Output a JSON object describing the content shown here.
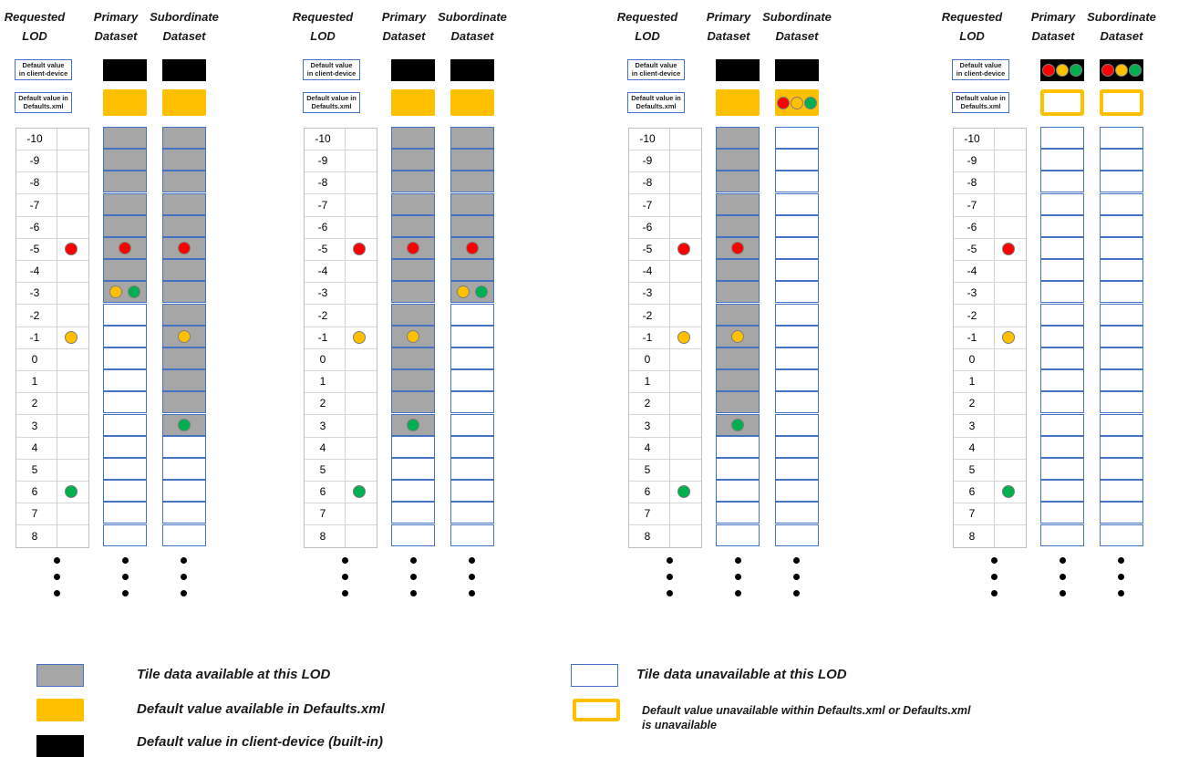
{
  "headers": {
    "requested": "Requested\nLOD",
    "primary": "Primary\nDataset",
    "subordinate": "Subordinate\nDataset"
  },
  "default_labels": {
    "client": "Default value\nin client-device",
    "xml": "Default value in\nDefaults.xml"
  },
  "lod_levels": [
    "-10",
    "-9",
    "-8",
    "-7",
    "-6",
    "-5",
    "-4",
    "-3",
    "-2",
    "-1",
    "0",
    "1",
    "2",
    "3",
    "4",
    "5",
    "6",
    "7",
    "8"
  ],
  "requested_dots": [
    {
      "lod": "-5",
      "color": "red"
    },
    {
      "lod": "-1",
      "color": "yellow"
    },
    {
      "lod": "6",
      "color": "green"
    }
  ],
  "scenarios": [
    {
      "primary": {
        "client_default": "black",
        "xml_default": "orange",
        "available_from": "-10",
        "available_to": "-3",
        "dots": [
          {
            "lod": "-5",
            "colors": [
              "red"
            ]
          },
          {
            "lod": "-3",
            "colors": [
              "yellow",
              "green"
            ]
          }
        ]
      },
      "subordinate": {
        "client_default": "black",
        "xml_default": "orange",
        "available_from": "-10",
        "available_to": "3",
        "dots": [
          {
            "lod": "-5",
            "colors": [
              "red"
            ]
          },
          {
            "lod": "-1",
            "colors": [
              "yellow"
            ]
          },
          {
            "lod": "3",
            "colors": [
              "green"
            ]
          }
        ]
      }
    },
    {
      "primary": {
        "client_default": "black",
        "xml_default": "orange",
        "available_from": "-10",
        "available_to": "3",
        "dots": [
          {
            "lod": "-5",
            "colors": [
              "red"
            ]
          },
          {
            "lod": "-1",
            "colors": [
              "yellow"
            ]
          },
          {
            "lod": "3",
            "colors": [
              "green"
            ]
          }
        ]
      },
      "subordinate": {
        "client_default": "black",
        "xml_default": "orange",
        "available_from": "-10",
        "available_to": "-3",
        "dots": [
          {
            "lod": "-5",
            "colors": [
              "red"
            ]
          },
          {
            "lod": "-3",
            "colors": [
              "yellow",
              "green"
            ]
          }
        ]
      }
    },
    {
      "primary": {
        "client_default": "black",
        "xml_default": "orange",
        "available_from": "-10",
        "available_to": "3",
        "dots": [
          {
            "lod": "-5",
            "colors": [
              "red"
            ]
          },
          {
            "lod": "-1",
            "colors": [
              "yellow"
            ]
          },
          {
            "lod": "3",
            "colors": [
              "green"
            ]
          }
        ]
      },
      "subordinate": {
        "client_default": "black",
        "xml_default": "orange-with-dots",
        "available_from": null,
        "available_to": null,
        "dots": []
      }
    },
    {
      "primary": {
        "client_default": "black-with-dots",
        "xml_default": "orange-empty",
        "available_from": null,
        "available_to": null,
        "dots": []
      },
      "subordinate": {
        "client_default": "black-with-dots",
        "xml_default": "orange-empty",
        "available_from": null,
        "available_to": null,
        "dots": []
      }
    }
  ],
  "legend": {
    "gray": "Tile data available at this LOD",
    "orange": "Default value available in Defaults.xml",
    "black": "Default value in client-device (built-in)",
    "white": "Tile data  unavailable at this LOD",
    "orange_empty": "Default value unavailable within Defaults.xml or Defaults.xml\nis unavailable"
  },
  "colors": {
    "gray": "#a6a6a6",
    "orange": "#ffc000",
    "black": "#000000",
    "blue_border": "#4472c4",
    "red": "#ff0000",
    "yellow": "#ffc000",
    "green": "#00b050"
  }
}
